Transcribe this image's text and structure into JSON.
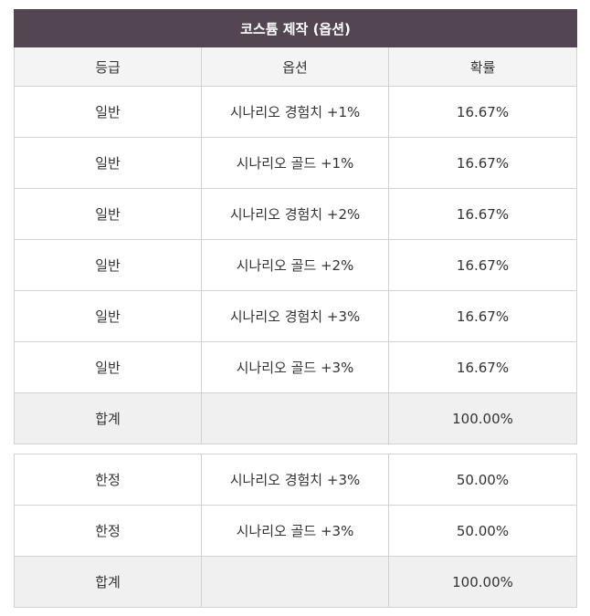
{
  "table1": {
    "title": "코스튬 제작 (옵션)",
    "headers": [
      "등급",
      "옵션",
      "확률"
    ],
    "rows": [
      {
        "grade": "일반",
        "option": "시나리오 경험치 +1%",
        "prob": "16.67%"
      },
      {
        "grade": "일반",
        "option": "시나리오 골드 +1%",
        "prob": "16.67%"
      },
      {
        "grade": "일반",
        "option": "시나리오 경험치 +2%",
        "prob": "16.67%"
      },
      {
        "grade": "일반",
        "option": "시나리오 골드 +2%",
        "prob": "16.67%"
      },
      {
        "grade": "일반",
        "option": "시나리오 경험치 +3%",
        "prob": "16.67%"
      },
      {
        "grade": "일반",
        "option": "시나리오 골드 +3%",
        "prob": "16.67%"
      }
    ],
    "total": {
      "label": "합계",
      "option": "",
      "prob": "100.00%"
    }
  },
  "table2": {
    "rows": [
      {
        "grade": "한정",
        "option": "시나리오 경험치 +3%",
        "prob": "50.00%"
      },
      {
        "grade": "한정",
        "option": "시나리오 골드 +3%",
        "prob": "50.00%"
      }
    ],
    "total": {
      "label": "합계",
      "option": "",
      "prob": "100.00%"
    }
  },
  "colors": {
    "title_bg": "#534552",
    "header_bg": "#f4f4f4",
    "total_bg": "#f0f0f0",
    "border": "#d2d2d2"
  }
}
